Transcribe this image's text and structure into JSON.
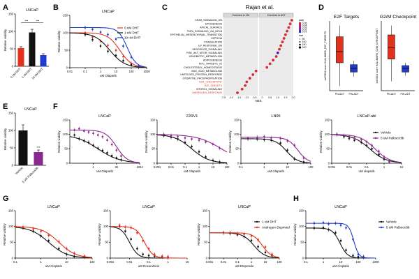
{
  "colors": {
    "black": "#111111",
    "red": "#e3311c",
    "blue": "#1f3ccf",
    "purple": "#8a2a8f",
    "gseaDot": "#d42a3a",
    "bluePoint": "#4a1fb0"
  },
  "chart_data": [
    {
      "panel": "A",
      "type": "bar",
      "title": "LNCaP",
      "categories": [
        "0 nM DHT",
        "1 nM DHT",
        "10 nM DHT"
      ],
      "values": [
        52,
        97,
        32
      ],
      "errors": [
        4,
        9,
        4
      ],
      "bar_colors": [
        "#e3311c",
        "#111111",
        "#1f3ccf"
      ],
      "ylabel": "Relative viability",
      "ylim": [
        0,
        150
      ],
      "yticks": [
        "0",
        "50",
        "100",
        "150"
      ],
      "significance": [
        "***",
        "***"
      ]
    },
    {
      "panel": "B",
      "type": "line",
      "title": "LNCaP",
      "xlabel": "uM Olaparib",
      "ylabel": "Relative viability",
      "xscale": "log",
      "xlim": [
        0.01,
        1000
      ],
      "ylim": [
        0,
        150
      ],
      "xticks": [
        "0.01",
        "0.1",
        "1",
        "10",
        "100",
        "1000"
      ],
      "yticks": [
        "0",
        "50",
        "100",
        "150"
      ],
      "series": [
        {
          "name": "0 nM DHT",
          "color": "#e3311c",
          "x": [
            0.1,
            0.3,
            1,
            3,
            10,
            30,
            100,
            300
          ],
          "y": [
            100,
            88,
            76,
            64,
            50,
            32,
            12,
            3
          ],
          "top": 100,
          "ic50": 18,
          "hill": 1.1
        },
        {
          "name": "1 nM DHT",
          "color": "#111111",
          "x": [
            0.1,
            0.3,
            1,
            3,
            10,
            30,
            100,
            300
          ],
          "y": [
            95,
            80,
            62,
            47,
            35,
            20,
            8,
            2
          ],
          "top": 100,
          "ic50": 4,
          "hill": 0.9
        },
        {
          "name": "10 nM DHT",
          "color": "#1f3ccf",
          "x": [
            0.1,
            0.3,
            1,
            3,
            10,
            30,
            100,
            300
          ],
          "y": [
            115,
            110,
            102,
            95,
            82,
            62,
            30,
            4
          ],
          "top": 115,
          "ic50": 55,
          "hill": 1.5
        }
      ],
      "legend": [
        "0 nM DHT",
        "1 nM DHT",
        "10 nM DHT"
      ]
    },
    {
      "panel": "C",
      "type": "scatter",
      "title": "Rajan et al.",
      "xlabel": "NES",
      "facet_labels": [
        "Enriched in CM",
        "Enriched in ADT"
      ],
      "xticks": [
        "-2.5",
        "-2.0",
        "-1.5",
        "-1.0",
        "-0.5",
        "0",
        "0.5",
        "1.0",
        "1.5",
        "2.0"
      ],
      "categories": [
        "KRAS_SIGNALING_DN",
        "MYOGENESIS",
        "APICAL_SURFACE",
        "TNFA_SIGNALING_VIA_NFKB",
        "EPITHELIAL_MESENCHYMAL_TRANSITION",
        "HYPOXIA",
        "COAGULATION",
        "UV_RESPONSE_DN",
        "HEDGEHOG_SIGNALING",
        "PI3K_AKT_MTOR_SIGNALING",
        "XENOBIOTIC_METABOLISM",
        "ADIPOGENESIS",
        "MYC_TARGETS_V2",
        "CHOLESTEROL_HOMEOSTASIS",
        "BILE_ACID_METABOLISM",
        "UNFOLDED_PROTEIN_RESPONSE",
        "OXIDATIVE_PHOSPHORYLATION",
        "G2M_CHECKPOINT",
        "E2F_TARGETS",
        "MTORC1_SIGNALING",
        "ANDROGEN_RESPONSE"
      ],
      "highlighted": [
        "G2M_CHECKPOINT",
        "E2F_TARGETS",
        "ANDROGEN_RESPONSE"
      ],
      "nes": [
        1.9,
        1.8,
        1.7,
        1.6,
        1.5,
        1.4,
        1.3,
        1.2,
        1.1,
        1.0,
        0.9,
        0.7,
        0.5,
        0.3,
        -0.4,
        -0.6,
        -0.8,
        -1.0,
        -1.1,
        -1.3,
        -1.6
      ],
      "legend": {
        "title": "padj",
        "levels": [
          "0.05",
          "0.04",
          "0.03",
          "0.02",
          "0.01"
        ],
        "size_title": "size",
        "sizes": [
          "50",
          "100",
          "150",
          "200"
        ]
      }
    },
    {
      "panel": "D",
      "type": "box",
      "title": "E2F Targets",
      "categories": [
        "PN-ADT",
        "PW-ADT"
      ],
      "ylabel": "ssGSEA score HALLMARK_E2F_TARGETS",
      "boxes": [
        {
          "name": "PN-ADT",
          "color": "#e3311c",
          "q1": 0.6,
          "median": 0.72,
          "q3": 0.88,
          "min": 0.35,
          "max": 1.0
        },
        {
          "name": "PW-ADT",
          "color": "#1f3ccf",
          "q1": 0.5,
          "median": 0.54,
          "q3": 0.58,
          "min": 0.45,
          "max": 0.62
        }
      ]
    },
    {
      "panel": "D2",
      "type": "box",
      "title": "G2/M Checkpoint",
      "categories": [
        "PN-ADT",
        "PW-ADT"
      ],
      "ylabel": "ssGSEA score HALLMARK_G2M_CHECKPOINT",
      "boxes": [
        {
          "name": "PN-ADT",
          "color": "#e3311c",
          "q1": 0.64,
          "median": 0.76,
          "q3": 0.9,
          "min": 0.4,
          "max": 1.0
        },
        {
          "name": "PW-ADT",
          "color": "#1f3ccf",
          "q1": 0.5,
          "median": 0.54,
          "q3": 0.57,
          "min": 0.46,
          "max": 0.6
        }
      ]
    },
    {
      "panel": "E",
      "type": "bar",
      "title": "LNCaP",
      "categories": [
        "Vehicle",
        "5 uM Palbociclib"
      ],
      "values": [
        100,
        38
      ],
      "errors": [
        16,
        6
      ],
      "bar_colors": [
        "#111111",
        "#8a2a8f"
      ],
      "ylabel": "Relative viability",
      "ylim": [
        0,
        150
      ],
      "yticks": [
        "0",
        "50",
        "100",
        "150"
      ],
      "significance": [
        "***"
      ]
    },
    {
      "panel": "F1",
      "type": "line",
      "title": "LNCaP",
      "xlabel": "uM Olaparib",
      "xscale": "log",
      "xlim": [
        0.03,
        1024
      ],
      "ylim": [
        0,
        150
      ],
      "xticks": [
        "1",
        "32",
        "1024"
      ],
      "xtick_values": [
        1,
        32,
        1024
      ],
      "yticks": [
        "0",
        "50",
        "100",
        "150"
      ],
      "ylabel": "Relative viability",
      "series": [
        {
          "name": "Vehicle",
          "color": "#111111",
          "x": [
            0.06,
            0.12,
            0.25,
            0.5,
            1,
            2,
            4,
            8,
            16,
            32,
            64
          ],
          "y": [
            98,
            85,
            78,
            72,
            62,
            52,
            44,
            36,
            26,
            18,
            12
          ],
          "top": 100,
          "ic50": 2,
          "hill": 0.6
        },
        {
          "name": "5 uM Palbociclib",
          "color": "#8a2a8f",
          "x": [
            0.06,
            0.12,
            0.25,
            0.5,
            1,
            2,
            4,
            8,
            16,
            32,
            64
          ],
          "y": [
            115,
            120,
            112,
            108,
            104,
            98,
            92,
            80,
            65,
            45,
            25
          ],
          "top": 115,
          "ic50": 32,
          "hill": 1.2
        }
      ]
    },
    {
      "panel": "F2",
      "type": "line",
      "title": "22RV1",
      "xlabel": "uM Olaparib",
      "xscale": "log",
      "xlim": [
        0.001,
        100
      ],
      "ylim": [
        0,
        150
      ],
      "xticks": [
        "0.001",
        "0.01",
        "0.1",
        "1",
        "10",
        "100"
      ],
      "xtick_values": [
        0.001,
        0.01,
        0.1,
        1,
        10,
        100
      ],
      "yticks": [
        "0",
        "50",
        "100",
        "150"
      ],
      "ylabel": "Relative viability",
      "series": [
        {
          "name": "Vehicle",
          "color": "#111111",
          "x": [
            0.003,
            0.01,
            0.03,
            0.1,
            0.3,
            1,
            3,
            10,
            30
          ],
          "y": [
            96,
            90,
            84,
            72,
            58,
            40,
            22,
            10,
            4
          ],
          "top": 100,
          "ic50": 0.3,
          "hill": 0.7
        },
        {
          "name": "5 uM Palbociclib",
          "color": "#8a2a8f",
          "x": [
            0.003,
            0.01,
            0.03,
            0.1,
            0.3,
            1,
            3,
            10,
            30
          ],
          "y": [
            100,
            96,
            92,
            88,
            84,
            80,
            74,
            66,
            52
          ],
          "top": 100,
          "ic50": 40,
          "hill": 0.5
        }
      ]
    },
    {
      "panel": "F3",
      "type": "line",
      "title": "LN95",
      "xlabel": "uM Olaparib",
      "xscale": "log",
      "xlim": [
        0.1,
        100
      ],
      "ylim": [
        0,
        150
      ],
      "xticks": [
        "0.1",
        "1",
        "10",
        "100"
      ],
      "xtick_values": [
        0.1,
        1,
        10,
        100
      ],
      "yticks": [
        "0",
        "50",
        "100",
        "150"
      ],
      "ylabel": "Relative viability",
      "series": [
        {
          "name": "Vehicle",
          "color": "#111111",
          "x": [
            0.2,
            0.5,
            1,
            2,
            5,
            10,
            20,
            50
          ],
          "y": [
            85,
            84,
            82,
            80,
            70,
            45,
            15,
            4
          ],
          "top": 85,
          "ic50": 9,
          "hill": 1.8
        },
        {
          "name": "5 uM Palbociclib",
          "color": "#8a2a8f",
          "x": [
            0.2,
            0.5,
            1,
            2,
            5,
            10,
            20,
            50
          ],
          "y": [
            86,
            90,
            92,
            88,
            86,
            78,
            62,
            18
          ],
          "top": 90,
          "ic50": 28,
          "hill": 2.0
        }
      ]
    },
    {
      "panel": "F4",
      "type": "line",
      "title": "LNCaP-abl",
      "xlabel": "uM olaparib",
      "xscale": "log",
      "xlim": [
        0.001,
        10
      ],
      "ylim": [
        0,
        150
      ],
      "xticks": [
        "0.001",
        "0.01",
        "0.1",
        "1",
        "10"
      ],
      "xtick_values": [
        0.001,
        0.01,
        0.1,
        1,
        10
      ],
      "yticks": [
        "0",
        "50",
        "100",
        "150"
      ],
      "ylabel": "Relative viability",
      "series": [
        {
          "name": "Vehicle",
          "color": "#111111",
          "x": [
            0.002,
            0.005,
            0.01,
            0.02,
            0.05,
            0.1,
            0.2,
            0.5,
            1,
            2
          ],
          "y": [
            100,
            92,
            86,
            80,
            72,
            62,
            50,
            30,
            14,
            5
          ],
          "top": 100,
          "ic50": 0.15,
          "hill": 0.9
        },
        {
          "name": "5 uM Palbociclib",
          "color": "#8a2a8f",
          "x": [
            0.002,
            0.005,
            0.01,
            0.02,
            0.05,
            0.1,
            0.2,
            0.5,
            1,
            2
          ],
          "y": [
            100,
            96,
            92,
            88,
            82,
            74,
            62,
            42,
            22,
            6
          ],
          "top": 100,
          "ic50": 0.3,
          "hill": 1.0
        }
      ],
      "legend": [
        "Vehicle",
        "5 uM Palbociclib"
      ]
    },
    {
      "panel": "G1",
      "type": "line",
      "title": "LNCaP",
      "xlabel": "uM Cisplatin",
      "xscale": "log",
      "xlim": [
        0.1,
        100
      ],
      "ylim": [
        0,
        150
      ],
      "xticks": [
        "0.1",
        "1",
        "10",
        "100"
      ],
      "xtick_values": [
        0.1,
        1,
        10,
        100
      ],
      "yticks": [
        "0",
        "50",
        "100",
        "150"
      ],
      "ylabel": "Relative viability",
      "series": [
        {
          "name": "1 nM DHT",
          "color": "#111111",
          "x": [
            0.1,
            0.2,
            0.5,
            1,
            2,
            5,
            10,
            20,
            50
          ],
          "y": [
            100,
            95,
            85,
            70,
            55,
            30,
            12,
            5,
            3
          ],
          "top": 100,
          "ic50": 2.0,
          "hill": 1.2
        },
        {
          "name": "Androgen-Deprived",
          "color": "#e3311c",
          "x": [
            0.1,
            0.2,
            0.5,
            1,
            2,
            5,
            10,
            20,
            50
          ],
          "y": [
            100,
            98,
            92,
            85,
            72,
            52,
            30,
            15,
            6
          ],
          "top": 100,
          "ic50": 5.0,
          "hill": 1.3
        }
      ]
    },
    {
      "panel": "G2",
      "type": "line",
      "title": "LNCaP",
      "xlabel": "uM Doxorubicin",
      "xscale": "log",
      "xlim": [
        0.001,
        10
      ],
      "ylim": [
        0,
        150
      ],
      "xticks": [
        "0.001",
        "0.01",
        "0.1",
        "1",
        "10"
      ],
      "xtick_values": [
        0.001,
        0.01,
        0.1,
        1,
        10
      ],
      "yticks": [
        "0",
        "50",
        "100",
        "150"
      ],
      "ylabel": "Relative viability",
      "series": [
        {
          "name": "1 nM DHT",
          "color": "#111111",
          "x": [
            0.003,
            0.006,
            0.012,
            0.025,
            0.05,
            0.1,
            0.2,
            0.5,
            1
          ],
          "y": [
            100,
            85,
            60,
            30,
            12,
            8,
            6,
            4,
            3
          ],
          "top": 100,
          "ic50": 0.01,
          "hill": 2.0
        },
        {
          "name": "Androgen-Deprived",
          "color": "#e3311c",
          "x": [
            0.003,
            0.006,
            0.012,
            0.025,
            0.05,
            0.1,
            0.2,
            0.5,
            1
          ],
          "y": [
            104,
            98,
            96,
            80,
            55,
            30,
            12,
            6,
            4
          ],
          "top": 100,
          "ic50": 0.06,
          "hill": 2.0
        }
      ]
    },
    {
      "panel": "G3",
      "type": "line",
      "title": "LNCaP",
      "xlabel": "uM Etoposide",
      "xscale": "log",
      "xlim": [
        0.001,
        100
      ],
      "ylim": [
        0,
        150
      ],
      "xticks": [
        "0.001",
        "0.01",
        "0.1",
        "1",
        "10",
        "100"
      ],
      "xtick_values": [
        0.001,
        0.01,
        0.1,
        1,
        10,
        100
      ],
      "yticks": [
        "0",
        "50",
        "100",
        "150"
      ],
      "ylabel": "Relative viability",
      "series": [
        {
          "name": "1 nM DHT",
          "color": "#111111",
          "x": [
            0.01,
            0.03,
            0.1,
            0.3,
            1,
            3,
            10,
            30
          ],
          "y": [
            80,
            78,
            74,
            68,
            56,
            36,
            18,
            8
          ],
          "top": 80,
          "ic50": 1.5,
          "hill": 1.1
        },
        {
          "name": "Androgen-Deprived",
          "color": "#e3311c",
          "x": [
            0.01,
            0.03,
            0.1,
            0.3,
            1,
            3,
            10,
            30
          ],
          "y": [
            80,
            80,
            78,
            76,
            70,
            58,
            35,
            12
          ],
          "top": 80,
          "ic50": 6,
          "hill": 1.3
        }
      ],
      "legend": [
        "1 nM DHT",
        "Androgen-Deprived"
      ]
    },
    {
      "panel": "H",
      "type": "line",
      "title": "LNCaP",
      "xlabel": "uM Cisplatin",
      "xscale": "log",
      "xlim": [
        0.1,
        1000
      ],
      "ylim": [
        0,
        150
      ],
      "xticks": [
        "0.1",
        "1",
        "10",
        "100",
        "1000"
      ],
      "xtick_values": [
        0.1,
        1,
        10,
        100,
        1000
      ],
      "yticks": [
        "0",
        "50",
        "100",
        "150"
      ],
      "ylabel": "Relative viability",
      "series": [
        {
          "name": "Vehicle",
          "color": "#111111",
          "x": [
            0.3,
            1,
            2,
            5,
            10,
            20,
            50,
            100,
            200
          ],
          "y": [
            95,
            96,
            90,
            80,
            55,
            25,
            8,
            4,
            3
          ],
          "top": 95,
          "ic50": 9,
          "hill": 2.0
        },
        {
          "name": "5 uM Palbociclib",
          "color": "#1f3ccf",
          "x": [
            0.3,
            1,
            2,
            5,
            10,
            20,
            50,
            100,
            200
          ],
          "y": [
            110,
            112,
            108,
            110,
            104,
            96,
            60,
            12,
            4
          ],
          "top": 110,
          "ic50": 55,
          "hill": 3.0
        }
      ],
      "legend": [
        "Vehicle",
        "5 uM Palbociclib"
      ]
    }
  ],
  "panel_labels": [
    "A",
    "B",
    "C",
    "D",
    "E",
    "F",
    "G",
    "H"
  ]
}
